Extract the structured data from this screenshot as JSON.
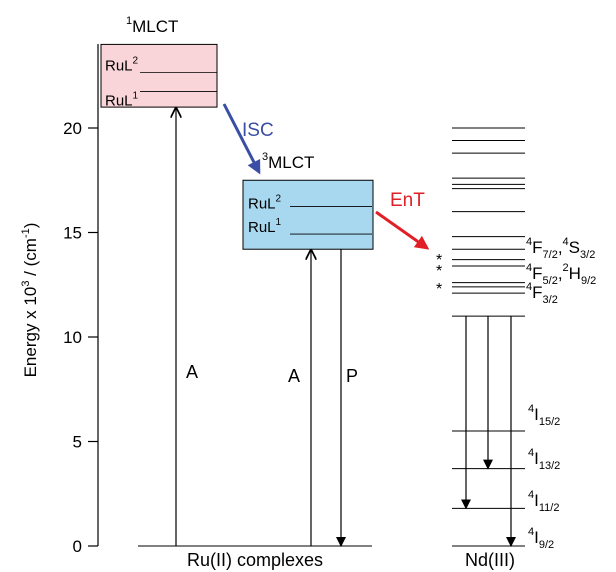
{
  "axis": {
    "ylabel_main": "Energy x 10",
    "ylabel_exp": "3",
    "ylabel_unit_a": " / (cm",
    "ylabel_unit_exp": "-1",
    "ylabel_unit_b": ")",
    "ticks": [
      {
        "value": 0,
        "label": "0"
      },
      {
        "value": 5,
        "label": "5"
      },
      {
        "value": 10,
        "label": "10"
      },
      {
        "value": 15,
        "label": "15"
      },
      {
        "value": 20,
        "label": "20"
      }
    ],
    "ymin": 0,
    "ymax": 24
  },
  "ru": {
    "xlabel": "Ru(II) complexes",
    "singlet": {
      "sup": "1",
      "label": "MLCT",
      "color": "#f9d5d9",
      "bottom": 21.0,
      "top": 24.0,
      "level_rul2": "RuL",
      "level_rul2_sup": "2",
      "level_rul1": "RuL",
      "level_rul1_sup": "1"
    },
    "triplet": {
      "sup": "3",
      "label": "MLCT",
      "color": "#a8d8f0",
      "bottom": 14.2,
      "top": 17.5,
      "level_rul2": "RuL",
      "level_rul2_sup": "2",
      "level_rul1": "RuL",
      "level_rul1_sup": "1"
    },
    "absorption_label_1": "A",
    "absorption_label_2": "A",
    "phosphorescence_label": "P"
  },
  "isc": {
    "label": "ISC",
    "color": "#3a4ea6"
  },
  "ent": {
    "label": "EnT",
    "color": "#e11f26"
  },
  "nd": {
    "xlabel": "Nd(III)",
    "levels": [
      0.0,
      1.8,
      3.7,
      5.5,
      11.0,
      12.1,
      12.4,
      12.6,
      13.4,
      13.7,
      14.2,
      14.8,
      16.0,
      17.1,
      17.3,
      17.6,
      18.8,
      19.4,
      20.0
    ],
    "term_labels": [
      {
        "sup": "4",
        "base": "I",
        "sub": "9/2",
        "level": 0.0
      },
      {
        "sup": "4",
        "base": "I",
        "sub": "11/2",
        "level": 1.8
      },
      {
        "sup": "4",
        "base": "I",
        "sub": "13/2",
        "level": 3.7
      },
      {
        "sup": "4",
        "base": "I",
        "sub": "15/2",
        "level": 5.5
      },
      {
        "sup": "4",
        "base": "F",
        "sub": "3/2",
        "level": 11.0
      },
      {
        "sup": "4",
        "base": "F",
        "sub": "5/2",
        "level": 12.6,
        "sup2": "2",
        "base2": "H",
        "sub2": "9/2"
      },
      {
        "sup": "4",
        "base": "F",
        "sub": "7/2",
        "level": 14.2,
        "sup2": "4",
        "base2": "S",
        "sub2": "3/2"
      }
    ],
    "stars": [
      "*",
      "*",
      "*"
    ],
    "emissions_to": [
      0.0,
      1.8,
      3.7
    ]
  }
}
